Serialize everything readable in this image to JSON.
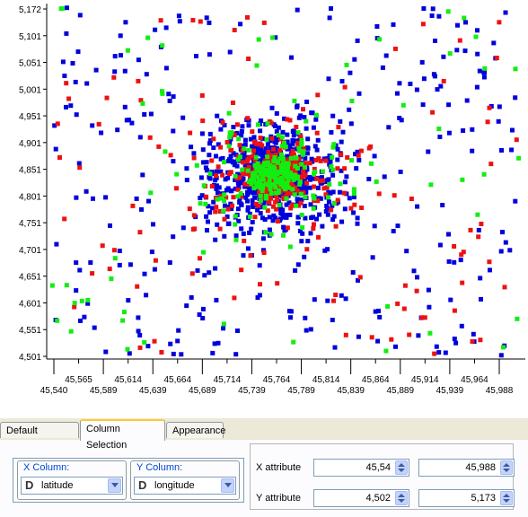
{
  "chart_data": {
    "type": "scatter",
    "x_ticks": [
      "45,565",
      "45,614",
      "45,664",
      "45,714",
      "45,764",
      "45,814",
      "45,864",
      "45,914",
      "45,964"
    ],
    "x_ticks_lower": [
      "45,540",
      "45,589",
      "45,639",
      "45,689",
      "45,739",
      "45,789",
      "45,839",
      "45,889",
      "45,939",
      "45,988"
    ],
    "y_ticks": [
      "5,172",
      "5,101",
      "5,051",
      "5,001",
      "4,951",
      "4,901",
      "4,851",
      "4,801",
      "4,751",
      "4,701",
      "4,651",
      "4,601",
      "4,551",
      "4,501"
    ],
    "xlim": [
      45.54,
      45.988
    ],
    "ylim": [
      4.502,
      5.173
    ],
    "series_colors": [
      "#0000dd",
      "#ee1111",
      "#11ee11"
    ],
    "point_counts": [
      1400,
      520,
      300
    ],
    "grid": false
  },
  "tabs": [
    {
      "label": "Default Settings"
    },
    {
      "label": "Column Selection"
    },
    {
      "label": "Appearance"
    }
  ],
  "columns": {
    "x_title": "X Column:",
    "x_value": "latitude",
    "y_title": "Y Column:",
    "y_value": "longitude",
    "type_icon": "D"
  },
  "attributes": {
    "x_label": "X attribute",
    "x_min": "45,54",
    "x_max": "45,988",
    "y_label": "Y attribute",
    "y_min": "4,502",
    "y_max": "5,173"
  }
}
